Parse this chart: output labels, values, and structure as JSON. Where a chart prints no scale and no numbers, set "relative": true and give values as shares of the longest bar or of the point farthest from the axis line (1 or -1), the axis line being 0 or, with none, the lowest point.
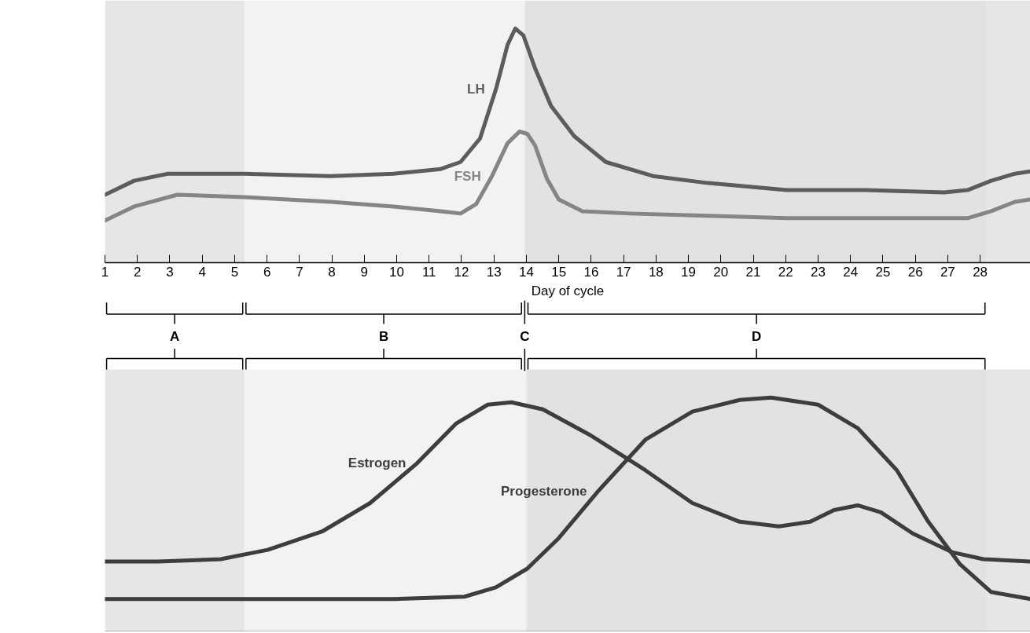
{
  "chart_data": [
    {
      "type": "line",
      "relative": true,
      "xlabel": "Day of cycle",
      "xlim": [
        1,
        29.55
      ],
      "xticks": [
        1,
        2,
        3,
        4,
        5,
        6,
        7,
        8,
        9,
        10,
        11,
        12,
        13,
        14,
        15,
        16,
        17,
        18,
        19,
        20,
        21,
        22,
        23,
        24,
        25,
        26,
        27,
        28
      ],
      "tick_labels": "x",
      "bands": [
        {
          "axis": "x",
          "from": 1,
          "to": 5.3,
          "color": "#e6e6e6"
        },
        {
          "axis": "x",
          "from": 5.3,
          "to": 13.95,
          "color": "#f2f2f2"
        },
        {
          "axis": "x",
          "from": 13.95,
          "to": 28.2,
          "color": "#e2e2e2"
        },
        {
          "axis": "x",
          "from": 28.2,
          "to": 29.55,
          "color": "#e6e6e6"
        }
      ],
      "series": [
        {
          "name": "LH",
          "color": "#5c5c5c",
          "x": [
            1.0,
            1.9,
            2.94,
            5.29,
            7.96,
            9.9,
            11.36,
            11.97,
            12.57,
            13.06,
            13.42,
            13.66,
            13.91,
            14.27,
            14.76,
            15.48,
            16.45,
            17.91,
            19.61,
            22.03,
            24.46,
            26.89,
            27.61,
            28.34,
            29.07,
            29.55
          ],
          "values": [
            0.29,
            0.35,
            0.38,
            0.38,
            0.37,
            0.38,
            0.4,
            0.43,
            0.53,
            0.74,
            0.93,
            1.0,
            0.97,
            0.83,
            0.67,
            0.54,
            0.43,
            0.37,
            0.34,
            0.31,
            0.31,
            0.3,
            0.31,
            0.35,
            0.38,
            0.39
          ]
        },
        {
          "name": "FSH",
          "color": "#858585",
          "x": [
            1.0,
            1.9,
            3.23,
            5.29,
            7.96,
            9.9,
            11.36,
            11.97,
            12.45,
            12.94,
            13.42,
            13.79,
            14.03,
            14.27,
            14.63,
            15.0,
            15.73,
            17.18,
            19.61,
            22.03,
            24.46,
            26.89,
            27.61,
            28.34,
            29.07,
            29.55
          ],
          "values": [
            0.18,
            0.24,
            0.29,
            0.28,
            0.26,
            0.24,
            0.22,
            0.21,
            0.25,
            0.37,
            0.51,
            0.56,
            0.55,
            0.5,
            0.36,
            0.27,
            0.22,
            0.21,
            0.2,
            0.19,
            0.19,
            0.19,
            0.19,
            0.22,
            0.26,
            0.27
          ]
        }
      ]
    },
    {
      "type": "line",
      "relative": true,
      "xlim": [
        1,
        29.55
      ],
      "tick_labels": false,
      "bands": [
        {
          "axis": "x",
          "from": 1,
          "to": 5.3,
          "label": "A",
          "color": "#e6e6e6"
        },
        {
          "axis": "x",
          "from": 5.3,
          "to": 13.9,
          "label": "B",
          "color": "#f2f2f2"
        },
        {
          "axis": "x",
          "from": 13.9,
          "to": 14.0,
          "label": "C",
          "color": "#f2f2f2"
        },
        {
          "axis": "x",
          "from": 14.0,
          "to": 28.2,
          "label": "D",
          "color": "#e2e2e2"
        },
        {
          "axis": "x",
          "from": 28.2,
          "to": 29.55,
          "color": "#e6e6e6"
        }
      ],
      "series": [
        {
          "name": "Estrogen",
          "color": "#3d3d3d",
          "x": [
            1.0,
            2.63,
            4.57,
            6.02,
            7.72,
            9.18,
            10.63,
            11.84,
            12.81,
            13.54,
            14.51,
            15.97,
            17.67,
            19.12,
            20.58,
            21.79,
            22.76,
            23.49,
            24.22,
            24.94,
            25.92,
            27.13,
            28.1,
            29.55
          ],
          "values": [
            0.3,
            0.3,
            0.31,
            0.35,
            0.43,
            0.55,
            0.72,
            0.89,
            0.97,
            0.98,
            0.95,
            0.84,
            0.69,
            0.55,
            0.47,
            0.45,
            0.47,
            0.52,
            0.54,
            0.51,
            0.42,
            0.34,
            0.31,
            0.3
          ]
        },
        {
          "name": "Progesterone",
          "color": "#3d3d3d",
          "x": [
            1.0,
            5.05,
            9.9,
            12.09,
            13.06,
            14.03,
            15.0,
            16.21,
            17.67,
            19.12,
            20.58,
            21.55,
            23.0,
            24.22,
            25.43,
            26.4,
            27.37,
            28.34,
            29.55
          ],
          "values": [
            0.14,
            0.14,
            0.14,
            0.15,
            0.19,
            0.27,
            0.4,
            0.6,
            0.82,
            0.94,
            0.99,
            1.0,
            0.97,
            0.87,
            0.69,
            0.47,
            0.29,
            0.17,
            0.14
          ]
        }
      ]
    }
  ]
}
